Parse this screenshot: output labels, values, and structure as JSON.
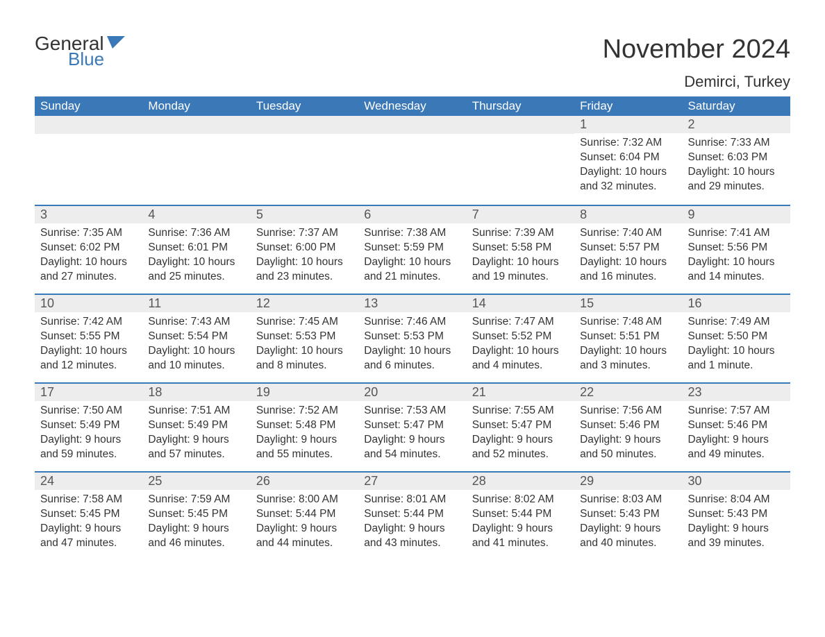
{
  "logo": {
    "text_general": "General",
    "text_blue": "Blue",
    "icon_color": "#3b78b8"
  },
  "title": "November 2024",
  "location": "Demirci, Turkey",
  "colors": {
    "header_bg": "#3b78b8",
    "header_text": "#ffffff",
    "daynum_bg": "#ededed",
    "border_top": "#3b78b8",
    "body_text": "#333333"
  },
  "weekdays": [
    "Sunday",
    "Monday",
    "Tuesday",
    "Wednesday",
    "Thursday",
    "Friday",
    "Saturday"
  ],
  "weeks": [
    [
      {
        "day": "",
        "lines": []
      },
      {
        "day": "",
        "lines": []
      },
      {
        "day": "",
        "lines": []
      },
      {
        "day": "",
        "lines": []
      },
      {
        "day": "",
        "lines": []
      },
      {
        "day": "1",
        "lines": [
          "Sunrise: 7:32 AM",
          "Sunset: 6:04 PM",
          "Daylight: 10 hours and 32 minutes."
        ]
      },
      {
        "day": "2",
        "lines": [
          "Sunrise: 7:33 AM",
          "Sunset: 6:03 PM",
          "Daylight: 10 hours and 29 minutes."
        ]
      }
    ],
    [
      {
        "day": "3",
        "lines": [
          "Sunrise: 7:35 AM",
          "Sunset: 6:02 PM",
          "Daylight: 10 hours and 27 minutes."
        ]
      },
      {
        "day": "4",
        "lines": [
          "Sunrise: 7:36 AM",
          "Sunset: 6:01 PM",
          "Daylight: 10 hours and 25 minutes."
        ]
      },
      {
        "day": "5",
        "lines": [
          "Sunrise: 7:37 AM",
          "Sunset: 6:00 PM",
          "Daylight: 10 hours and 23 minutes."
        ]
      },
      {
        "day": "6",
        "lines": [
          "Sunrise: 7:38 AM",
          "Sunset: 5:59 PM",
          "Daylight: 10 hours and 21 minutes."
        ]
      },
      {
        "day": "7",
        "lines": [
          "Sunrise: 7:39 AM",
          "Sunset: 5:58 PM",
          "Daylight: 10 hours and 19 minutes."
        ]
      },
      {
        "day": "8",
        "lines": [
          "Sunrise: 7:40 AM",
          "Sunset: 5:57 PM",
          "Daylight: 10 hours and 16 minutes."
        ]
      },
      {
        "day": "9",
        "lines": [
          "Sunrise: 7:41 AM",
          "Sunset: 5:56 PM",
          "Daylight: 10 hours and 14 minutes."
        ]
      }
    ],
    [
      {
        "day": "10",
        "lines": [
          "Sunrise: 7:42 AM",
          "Sunset: 5:55 PM",
          "Daylight: 10 hours and 12 minutes."
        ]
      },
      {
        "day": "11",
        "lines": [
          "Sunrise: 7:43 AM",
          "Sunset: 5:54 PM",
          "Daylight: 10 hours and 10 minutes."
        ]
      },
      {
        "day": "12",
        "lines": [
          "Sunrise: 7:45 AM",
          "Sunset: 5:53 PM",
          "Daylight: 10 hours and 8 minutes."
        ]
      },
      {
        "day": "13",
        "lines": [
          "Sunrise: 7:46 AM",
          "Sunset: 5:53 PM",
          "Daylight: 10 hours and 6 minutes."
        ]
      },
      {
        "day": "14",
        "lines": [
          "Sunrise: 7:47 AM",
          "Sunset: 5:52 PM",
          "Daylight: 10 hours and 4 minutes."
        ]
      },
      {
        "day": "15",
        "lines": [
          "Sunrise: 7:48 AM",
          "Sunset: 5:51 PM",
          "Daylight: 10 hours and 3 minutes."
        ]
      },
      {
        "day": "16",
        "lines": [
          "Sunrise: 7:49 AM",
          "Sunset: 5:50 PM",
          "Daylight: 10 hours and 1 minute."
        ]
      }
    ],
    [
      {
        "day": "17",
        "lines": [
          "Sunrise: 7:50 AM",
          "Sunset: 5:49 PM",
          "Daylight: 9 hours and 59 minutes."
        ]
      },
      {
        "day": "18",
        "lines": [
          "Sunrise: 7:51 AM",
          "Sunset: 5:49 PM",
          "Daylight: 9 hours and 57 minutes."
        ]
      },
      {
        "day": "19",
        "lines": [
          "Sunrise: 7:52 AM",
          "Sunset: 5:48 PM",
          "Daylight: 9 hours and 55 minutes."
        ]
      },
      {
        "day": "20",
        "lines": [
          "Sunrise: 7:53 AM",
          "Sunset: 5:47 PM",
          "Daylight: 9 hours and 54 minutes."
        ]
      },
      {
        "day": "21",
        "lines": [
          "Sunrise: 7:55 AM",
          "Sunset: 5:47 PM",
          "Daylight: 9 hours and 52 minutes."
        ]
      },
      {
        "day": "22",
        "lines": [
          "Sunrise: 7:56 AM",
          "Sunset: 5:46 PM",
          "Daylight: 9 hours and 50 minutes."
        ]
      },
      {
        "day": "23",
        "lines": [
          "Sunrise: 7:57 AM",
          "Sunset: 5:46 PM",
          "Daylight: 9 hours and 49 minutes."
        ]
      }
    ],
    [
      {
        "day": "24",
        "lines": [
          "Sunrise: 7:58 AM",
          "Sunset: 5:45 PM",
          "Daylight: 9 hours and 47 minutes."
        ]
      },
      {
        "day": "25",
        "lines": [
          "Sunrise: 7:59 AM",
          "Sunset: 5:45 PM",
          "Daylight: 9 hours and 46 minutes."
        ]
      },
      {
        "day": "26",
        "lines": [
          "Sunrise: 8:00 AM",
          "Sunset: 5:44 PM",
          "Daylight: 9 hours and 44 minutes."
        ]
      },
      {
        "day": "27",
        "lines": [
          "Sunrise: 8:01 AM",
          "Sunset: 5:44 PM",
          "Daylight: 9 hours and 43 minutes."
        ]
      },
      {
        "day": "28",
        "lines": [
          "Sunrise: 8:02 AM",
          "Sunset: 5:44 PM",
          "Daylight: 9 hours and 41 minutes."
        ]
      },
      {
        "day": "29",
        "lines": [
          "Sunrise: 8:03 AM",
          "Sunset: 5:43 PM",
          "Daylight: 9 hours and 40 minutes."
        ]
      },
      {
        "day": "30",
        "lines": [
          "Sunrise: 8:04 AM",
          "Sunset: 5:43 PM",
          "Daylight: 9 hours and 39 minutes."
        ]
      }
    ]
  ]
}
